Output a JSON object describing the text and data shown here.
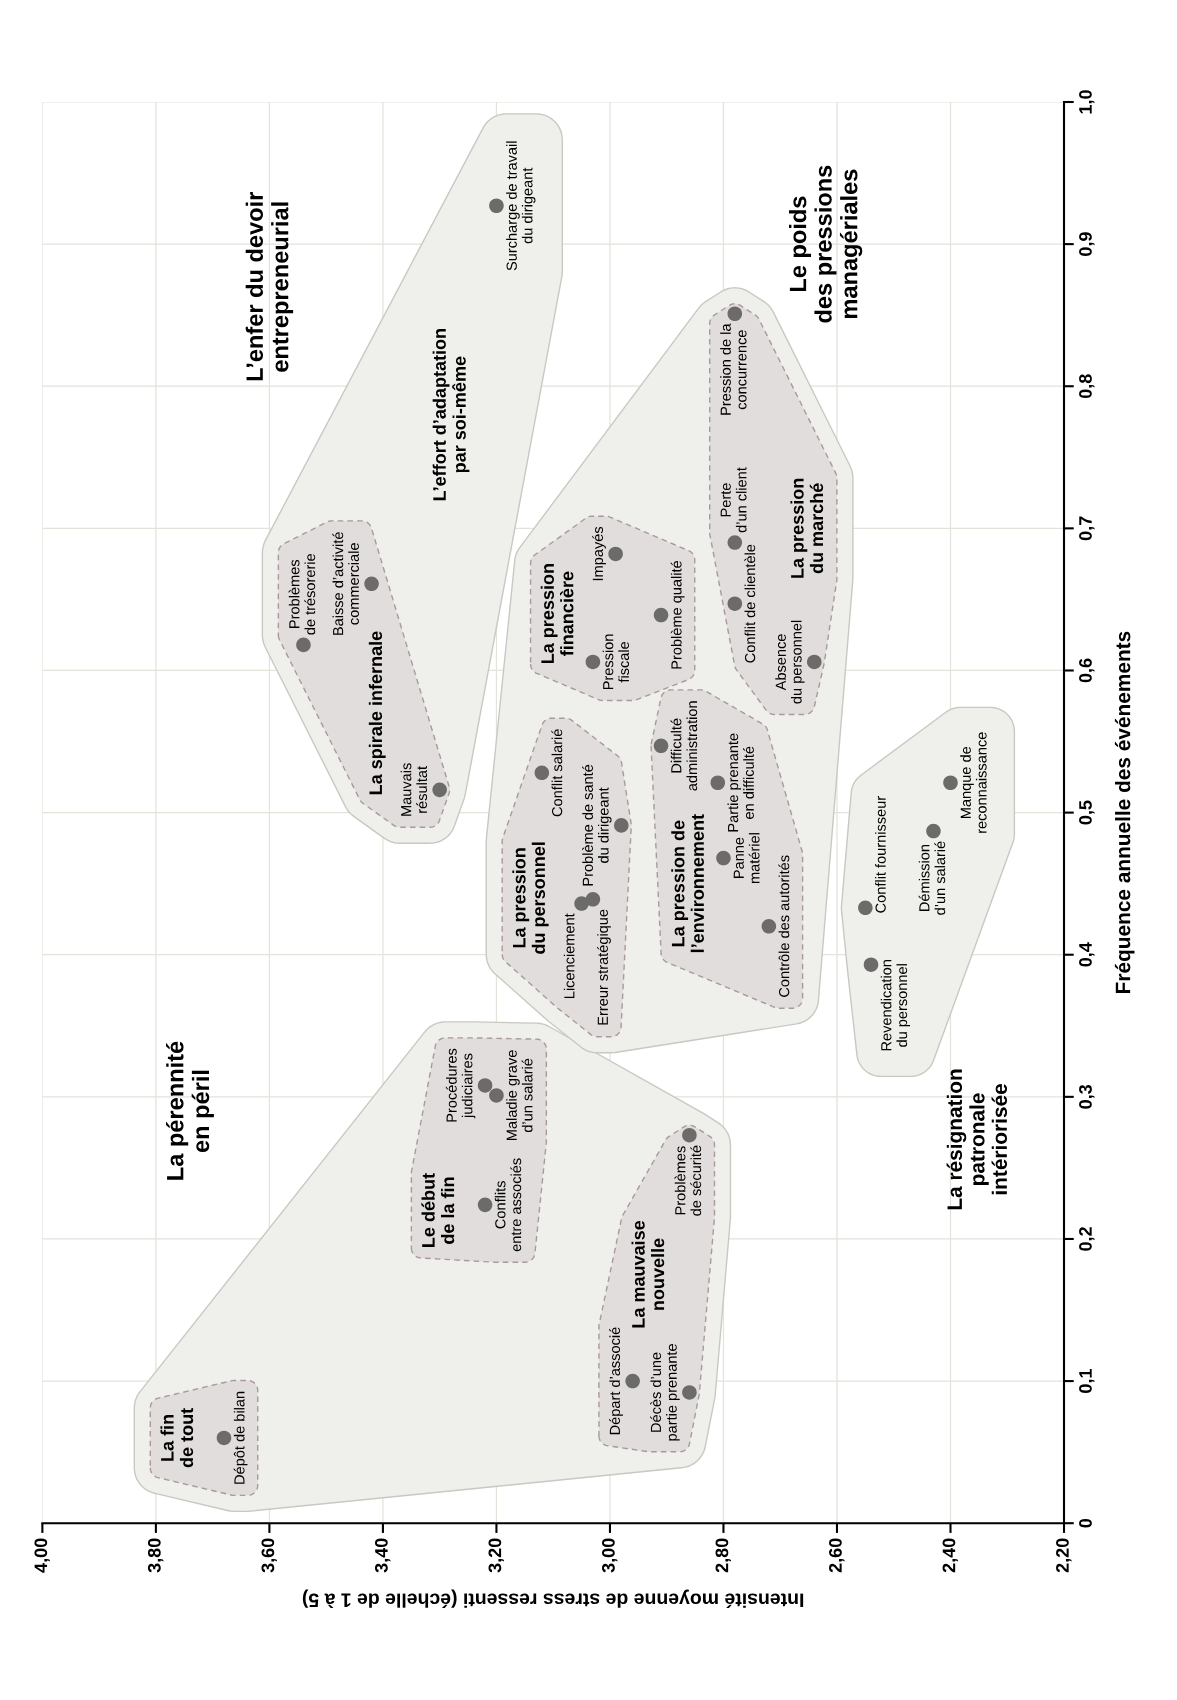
{
  "chart_data": {
    "type": "scatter",
    "xlabel": "Intensité moyenne de stress ressenti (échelle de 1 à 5)",
    "ylabel": "Fréquence annuelle des événements",
    "xlim": [
      4.0,
      2.2
    ],
    "ylim": [
      0,
      1.0
    ],
    "xticks": [
      {
        "value": 4.0,
        "label": "4,00"
      },
      {
        "value": 3.8,
        "label": "3,80"
      },
      {
        "value": 3.6,
        "label": "3,60"
      },
      {
        "value": 3.4,
        "label": "3,40"
      },
      {
        "value": 3.2,
        "label": "3,20"
      },
      {
        "value": 3.0,
        "label": "3,00"
      },
      {
        "value": 2.8,
        "label": "2,80"
      },
      {
        "value": 2.6,
        "label": "2,60"
      },
      {
        "value": 2.4,
        "label": "2,40"
      },
      {
        "value": 2.2,
        "label": "2,20"
      }
    ],
    "yticks": [
      0,
      {
        "value": 0.1,
        "label": "0,1"
      },
      {
        "value": 0.2,
        "label": "0,2"
      },
      {
        "value": 0.3,
        "label": "0,3"
      },
      {
        "value": 0.4,
        "label": "0,4"
      },
      {
        "value": 0.5,
        "label": "0,5"
      },
      {
        "value": 0.6,
        "label": "0,6"
      },
      {
        "value": 0.7,
        "label": "0,7"
      },
      {
        "value": 0.8,
        "label": "0,8"
      },
      {
        "value": 0.9,
        "label": "0,9"
      },
      {
        "value": 1.0,
        "label": "1,0"
      }
    ],
    "grid": true,
    "marker": "circle",
    "series": [
      {
        "name": "La fin\nde tout",
        "color": "#6d6a6a",
        "x": [
          3.68
        ],
        "values": [
          0.06
        ]
      },
      {
        "name": "Le début\nde la fin",
        "color": "#6d6a6a",
        "x": [
          3.22,
          3.22,
          3.2
        ],
        "values": [
          0.224,
          0.308,
          0.301
        ]
      },
      {
        "name": "La mauvaise\nnouvelle",
        "color": "#6d6a6a",
        "x": [
          2.96,
          2.86,
          2.86
        ],
        "values": [
          0.1,
          0.092,
          0.273
        ]
      },
      {
        "name": "La spirale infernale",
        "color": "#6d6a6a",
        "x": [
          3.3,
          3.54,
          3.42
        ],
        "values": [
          0.516,
          0.618,
          0.661
        ]
      },
      {
        "color": "#6d6a6a",
        "x": [
          3.2
        ],
        "values": [
          0.927
        ]
      },
      {
        "name": "La pression\ndu personnel",
        "color": "#6d6a6a",
        "x": [
          3.05,
          3.03,
          2.98,
          3.12
        ],
        "values": [
          0.436,
          0.439,
          0.491,
          0.528
        ]
      },
      {
        "name": "La pression de\nl’environnement",
        "color": "#6d6a6a",
        "x": [
          2.72,
          2.8,
          2.81,
          2.91
        ],
        "values": [
          0.42,
          0.468,
          0.521,
          0.547
        ]
      },
      {
        "name": "La pression\nfinancière",
        "color": "#6d6a6a",
        "x": [
          3.03,
          2.91,
          2.99
        ],
        "values": [
          0.606,
          0.639,
          0.682
        ]
      },
      {
        "name": "La pression\ndu marché",
        "color": "#6d6a6a",
        "x": [
          2.64,
          2.78,
          2.78,
          2.78
        ],
        "values": [
          0.606,
          0.647,
          0.69,
          0.851
        ]
      },
      {
        "color": "#6d6a6a",
        "x": [
          2.54,
          2.55,
          2.43,
          2.4
        ],
        "values": [
          0.393,
          0.433,
          0.487,
          0.521
        ]
      }
    ],
    "annotations": [
      {
        "text": "Dépôt de bilan",
        "x": 3.68,
        "y": 0.06
      },
      {
        "text": "Conflits\nentre associés",
        "x": 3.22,
        "y": 0.224
      },
      {
        "text": "Procédures\njudiciaires",
        "x": 3.22,
        "y": 0.308
      },
      {
        "text": "Maladie grave\nd’un salarié",
        "x": 3.2,
        "y": 0.301
      },
      {
        "text": "Départ d’associé",
        "x": 2.96,
        "y": 0.1
      },
      {
        "text": "Décès d’une\npartie prenante",
        "x": 2.86,
        "y": 0.092
      },
      {
        "text": "Problèmes\nde sécurité",
        "x": 2.86,
        "y": 0.273
      },
      {
        "text": "Mauvais\nrésultat",
        "x": 3.3,
        "y": 0.516
      },
      {
        "text": "Problèmes\nde trésorerie",
        "x": 3.54,
        "y": 0.618
      },
      {
        "text": "Baisse d’activité\ncommerciale",
        "x": 3.42,
        "y": 0.661
      },
      {
        "text": "Surcharge de travail\ndu dirigeant",
        "x": 3.2,
        "y": 0.927
      },
      {
        "text": "Licenciement",
        "x": 3.05,
        "y": 0.436
      },
      {
        "text": "Erreur stratégique",
        "x": 3.03,
        "y": 0.439
      },
      {
        "text": "Problème de santé\ndu dirigeant",
        "x": 2.98,
        "y": 0.491
      },
      {
        "text": "Conflit salarié",
        "x": 3.12,
        "y": 0.528
      },
      {
        "text": "Contrôle des autorités",
        "x": 2.72,
        "y": 0.42
      },
      {
        "text": "Panne\nmatériel",
        "x": 2.8,
        "y": 0.468
      },
      {
        "text": "Partie prenante\nen difficulté",
        "x": 2.81,
        "y": 0.521
      },
      {
        "text": "Difficulté\nadministration",
        "x": 2.91,
        "y": 0.547
      },
      {
        "text": "Pression\nfiscale",
        "x": 3.03,
        "y": 0.606
      },
      {
        "text": "Problème qualité",
        "x": 2.91,
        "y": 0.639
      },
      {
        "text": "Impayés",
        "x": 2.99,
        "y": 0.682
      },
      {
        "text": "Absence\ndu personnel",
        "x": 2.64,
        "y": 0.606
      },
      {
        "text": "Conflit de clientèle",
        "x": 2.78,
        "y": 0.647
      },
      {
        "text": "Perte\nd’un client",
        "x": 2.78,
        "y": 0.69
      },
      {
        "text": "Pression de la\nconcurrence",
        "x": 2.78,
        "y": 0.851
      },
      {
        "text": "Revendication\ndu personnel",
        "x": 2.54,
        "y": 0.393
      },
      {
        "text": "Conflit fournisseur",
        "x": 2.55,
        "y": 0.433
      },
      {
        "text": "Démission\nd’un salarié",
        "x": 2.43,
        "y": 0.487
      },
      {
        "text": "Manque de\nreconnaissance",
        "x": 2.4,
        "y": 0.521
      },
      "L’enfer du devoir\nentrepreneurial",
      "Le poids\ndes pressions\nmanagériales",
      "La pérennité\nen péril",
      "L’effort d’adaptation\npar soi-même",
      "La résignation\npatronale\nintériorisée"
    ]
  }
}
